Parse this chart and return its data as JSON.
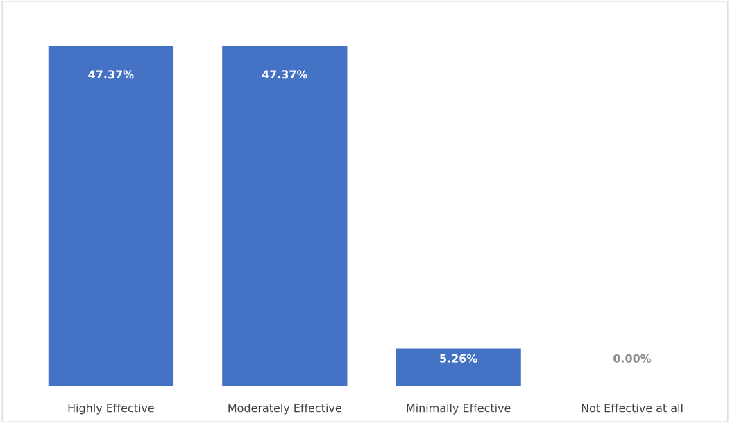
{
  "chart_data": {
    "type": "bar",
    "categories": [
      "Highly Effective",
      "Moderately Effective",
      "Minimally Effective",
      "Not Effective at all"
    ],
    "values": [
      47.37,
      47.37,
      5.26,
      0.0
    ],
    "value_labels": [
      "47.37%",
      "47.37%",
      "5.26%",
      "0.00%"
    ],
    "color": "#4472c4",
    "grid": false,
    "legend": false
  }
}
